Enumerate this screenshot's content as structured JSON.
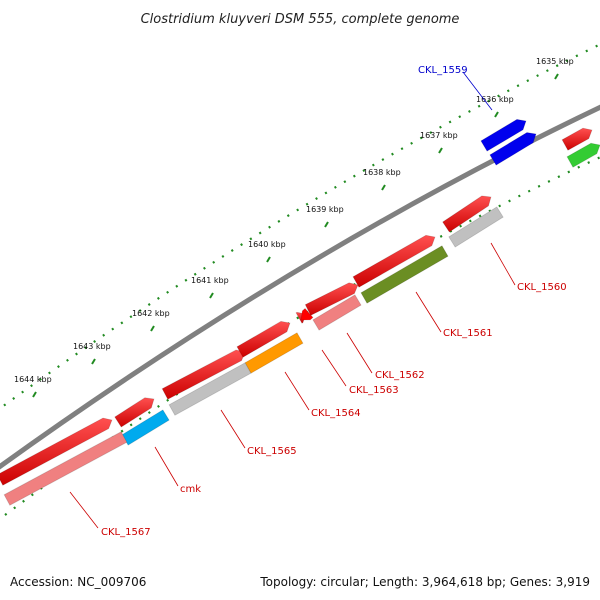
{
  "title": "Clostridium kluyveri DSM 555, complete genome",
  "footer": {
    "accession": "Accession: NC_009706",
    "summary": "Topology: circular; Length: 3,964,618 bp; Genes: 3,919"
  },
  "ruler": {
    "ticks": [
      "1635 kbp",
      "1636 kbp",
      "1637 kbp",
      "1638 kbp",
      "1639 kbp",
      "1640 kbp",
      "1641 kbp",
      "1642 kbp",
      "1643 kbp",
      "1644 kbp"
    ]
  },
  "genes": [
    {
      "id": "ckl1559",
      "label": "CKL_1559",
      "label_color": "#0000cc",
      "color": "#0000ee"
    },
    {
      "id": "ckl1560",
      "label": "CKL_1560",
      "label_color": "#cc0000",
      "color": "#c0c0c0"
    },
    {
      "id": "ckl1561",
      "label": "CKL_1561",
      "label_color": "#cc0000",
      "color": "#6b8e23"
    },
    {
      "id": "ckl1562",
      "label": "CKL_1562",
      "label_color": "#cc0000",
      "color": "#f08080"
    },
    {
      "id": "ckl1563",
      "label": "CKL_1563",
      "label_color": "#cc0000",
      "color": "#ff0000"
    },
    {
      "id": "ckl1564",
      "label": "CKL_1564",
      "label_color": "#cc0000",
      "color": "#ff9900"
    },
    {
      "id": "ckl1565",
      "label": "CKL_1565",
      "label_color": "#cc0000",
      "color": "#c0c0c0"
    },
    {
      "id": "cmk",
      "label": "cmk",
      "label_color": "#cc0000",
      "color": "#00aaee"
    },
    {
      "id": "ckl1567",
      "label": "CKL_1567",
      "label_color": "#cc0000",
      "color": "#f08080"
    }
  ]
}
